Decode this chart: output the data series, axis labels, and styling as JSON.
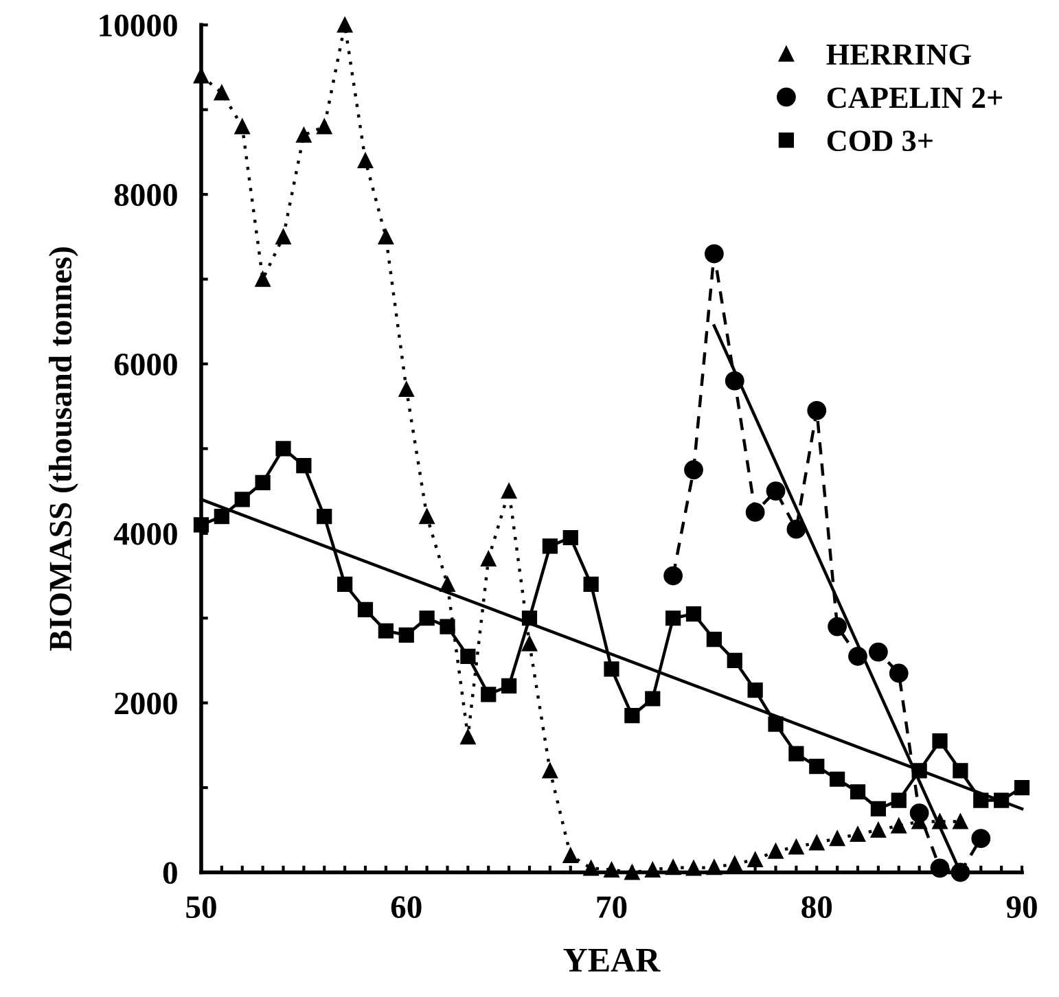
{
  "chart_data": {
    "type": "line",
    "xlabel": "YEAR",
    "ylabel": "BIOMASS (thousand tonnes)",
    "xlim": [
      50,
      90
    ],
    "ylim": [
      0,
      10000
    ],
    "xticks": [
      50,
      {
        "value": 51,
        "label": null
      },
      {
        "value": 52,
        "label": null
      },
      {
        "value": 53,
        "label": null
      },
      {
        "value": 54,
        "label": null
      },
      {
        "value": 55,
        "label": null
      },
      {
        "value": 56,
        "label": null
      },
      {
        "value": 57,
        "label": null
      },
      {
        "value": 58,
        "label": null
      },
      {
        "value": 59,
        "label": null
      },
      60,
      {
        "value": 61,
        "label": null
      },
      {
        "value": 62,
        "label": null
      },
      {
        "value": 63,
        "label": null
      },
      {
        "value": 64,
        "label": null
      },
      {
        "value": 65,
        "label": null
      },
      {
        "value": 66,
        "label": null
      },
      {
        "value": 67,
        "label": null
      },
      {
        "value": 68,
        "label": null
      },
      {
        "value": 69,
        "label": null
      },
      70,
      {
        "value": 71,
        "label": null
      },
      {
        "value": 72,
        "label": null
      },
      {
        "value": 73,
        "label": null
      },
      {
        "value": 74,
        "label": null
      },
      {
        "value": 75,
        "label": null
      },
      {
        "value": 76,
        "label": null
      },
      {
        "value": 77,
        "label": null
      },
      {
        "value": 78,
        "label": null
      },
      {
        "value": 79,
        "label": null
      },
      80,
      {
        "value": 81,
        "label": null
      },
      {
        "value": 82,
        "label": null
      },
      {
        "value": 83,
        "label": null
      },
      {
        "value": 84,
        "label": null
      },
      {
        "value": 85,
        "label": null
      },
      {
        "value": 86,
        "label": null
      },
      {
        "value": 87,
        "label": null
      },
      {
        "value": 88,
        "label": null
      },
      {
        "value": 89,
        "label": null
      },
      90
    ],
    "yticks": [
      0,
      {
        "value": 1000,
        "label": null
      },
      2000,
      {
        "value": 3000,
        "label": null
      },
      4000,
      {
        "value": 5000,
        "label": null
      },
      6000,
      {
        "value": 7000,
        "label": null
      },
      8000,
      {
        "value": 9000,
        "label": null
      },
      10000
    ],
    "grid": false,
    "legend": "top right",
    "series": [
      {
        "name": "HERRING",
        "color": "#000000",
        "marker": "triangle",
        "line_style": "dotted",
        "x": [
          50,
          51,
          52,
          53,
          54,
          55,
          56,
          57,
          58,
          59,
          60,
          61,
          62,
          63,
          64,
          65,
          66,
          67,
          68,
          69,
          70,
          71,
          72,
          73,
          74,
          75,
          76,
          77,
          78,
          79,
          80,
          81,
          82,
          83,
          84,
          85,
          86,
          87
        ],
        "values": [
          9400,
          9200,
          8800,
          7000,
          7500,
          8700,
          8800,
          10000,
          8400,
          7500,
          5700,
          4200,
          3400,
          1600,
          3700,
          4500,
          2700,
          1200,
          200,
          50,
          30,
          0,
          30,
          60,
          50,
          60,
          100,
          150,
          250,
          300,
          350,
          400,
          450,
          500,
          550,
          600,
          600,
          600
        ]
      },
      {
        "name": "CAPELIN 2+",
        "color": "#000000",
        "marker": "circle",
        "line_style": "dashed",
        "x": [
          73,
          74,
          75,
          76,
          77,
          78,
          79,
          80,
          81,
          82,
          83,
          84,
          85,
          86,
          87,
          88
        ],
        "values": [
          3500,
          4750,
          7300,
          5800,
          4250,
          4500,
          4050,
          5450,
          2900,
          2550,
          2600,
          2350,
          700,
          50,
          0,
          400
        ]
      },
      {
        "name": "COD 3+",
        "color": "#000000",
        "marker": "square",
        "line_style": "solid",
        "x": [
          50,
          51,
          52,
          53,
          54,
          55,
          56,
          57,
          58,
          59,
          60,
          61,
          62,
          63,
          64,
          65,
          66,
          67,
          68,
          69,
          70,
          71,
          72,
          73,
          74,
          75,
          76,
          77,
          78,
          79,
          80,
          81,
          82,
          83,
          84,
          85,
          86,
          87,
          88,
          89,
          90
        ],
        "values": [
          4100,
          4200,
          4400,
          4600,
          5000,
          4800,
          4200,
          3400,
          3100,
          2850,
          2800,
          3000,
          2900,
          2550,
          2100,
          2200,
          3000,
          3850,
          3950,
          3400,
          2400,
          1850,
          2050,
          3000,
          3050,
          2750,
          2500,
          2150,
          1750,
          1400,
          1250,
          1100,
          950,
          750,
          850,
          1200,
          1550,
          1200,
          850,
          850,
          1000
        ]
      },
      {
        "color": "#000000",
        "marker": "none",
        "line_style": "solid",
        "x": [
          50,
          90
        ],
        "values": [
          4400,
          750
        ]
      },
      {
        "color": "#000000",
        "marker": "none",
        "line_style": "solid",
        "x": [
          75,
          87
        ],
        "values": [
          6450,
          0
        ]
      }
    ]
  }
}
